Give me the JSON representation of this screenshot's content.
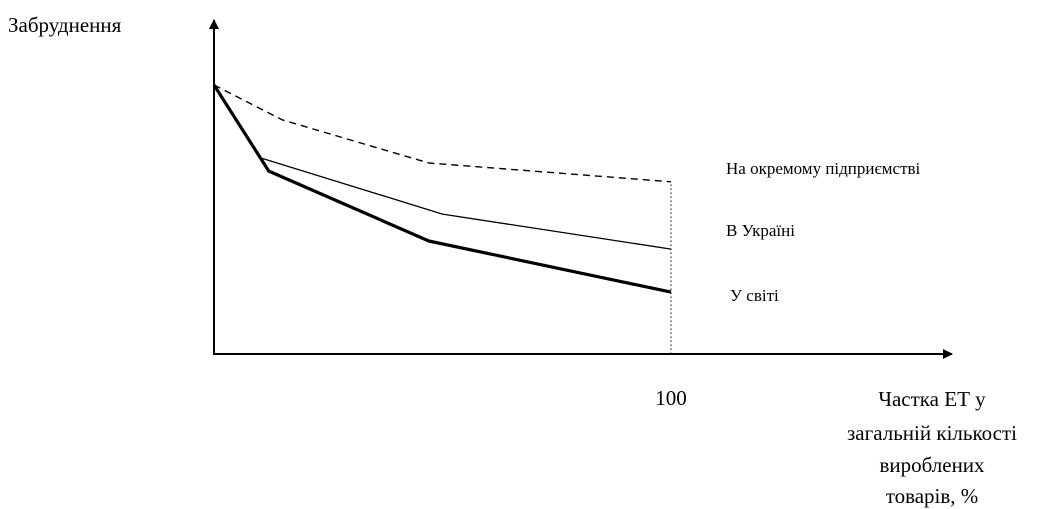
{
  "chart_data": {
    "type": "line",
    "ylabel": "Забруднення",
    "xlabel": [
      "Частка ЕТ у",
      "загальній кількості",
      "вироблених",
      "товарів, %"
    ],
    "xlim": [
      0,
      100
    ],
    "ylim": [
      0,
      100
    ],
    "x_ticks": [
      100
    ],
    "marker_line_at": 100,
    "series": [
      {
        "name": "На окремому підприємстві",
        "style": "dashed",
        "color": "#000000",
        "x": [
          0,
          15,
          47,
          100
        ],
        "y": [
          100,
          87,
          71,
          64
        ]
      },
      {
        "name": "В Україні",
        "style": "thin",
        "color": "#000000",
        "x": [
          0,
          10,
          50,
          100
        ],
        "y": [
          100,
          73,
          52,
          39
        ]
      },
      {
        "name": "У світі",
        "style": "thick",
        "color": "#000000",
        "x": [
          0,
          12,
          47,
          100
        ],
        "y": [
          100,
          68,
          42,
          23
        ]
      }
    ]
  }
}
